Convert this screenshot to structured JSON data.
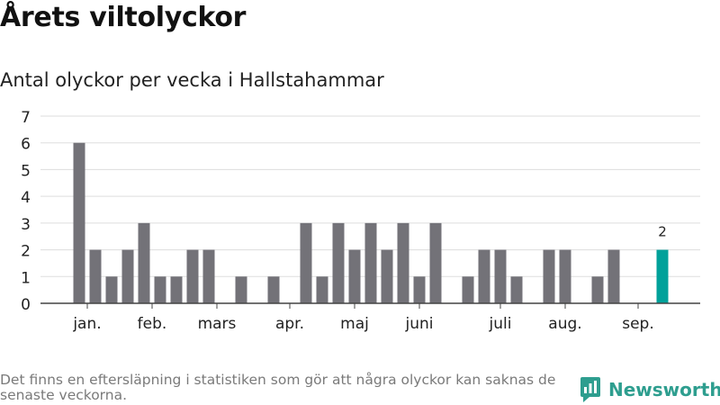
{
  "header": {
    "title": "Årets viltolyckor",
    "subtitle": "Antal olyckor per vecka i Hallstahammar"
  },
  "footnote": "Det finns en eftersläpning i statistiken som gör att några olyckor kan saknas de senaste veckorna.",
  "brand": {
    "name": "Newsworthy",
    "icon": "newsworthy-logo-icon",
    "color": "#2e9e8f"
  },
  "colors": {
    "bar": "#737278",
    "highlight": "#00a19a",
    "grid": "#dddddd",
    "axis": "#444444"
  },
  "chart_data": {
    "type": "bar",
    "title": "Antal olyckor per vecka i Hallstahammar",
    "xlabel": "",
    "ylabel": "",
    "ylim": [
      0,
      7
    ],
    "yticks": [
      0,
      1,
      2,
      3,
      4,
      5,
      6,
      7
    ],
    "x": [
      1,
      2,
      3,
      4,
      5,
      6,
      7,
      8,
      9,
      10,
      11,
      12,
      13,
      14,
      15,
      16,
      17,
      18,
      19,
      20,
      21,
      22,
      23,
      24,
      25,
      26,
      27,
      28,
      29,
      30,
      31,
      32,
      33,
      34,
      35,
      36,
      37,
      38
    ],
    "values": [
      6,
      2,
      1,
      2,
      3,
      1,
      1,
      2,
      2,
      0,
      1,
      0,
      1,
      0,
      3,
      1,
      3,
      2,
      3,
      2,
      3,
      1,
      3,
      0,
      1,
      2,
      2,
      1,
      0,
      2,
      2,
      0,
      1,
      2,
      0,
      0,
      2,
      0
    ],
    "highlight_index": 36,
    "data_labels": [
      {
        "x": 37,
        "value": 2
      }
    ],
    "month_labels": [
      {
        "label": "jan.",
        "x": 1.5
      },
      {
        "label": "feb.",
        "x": 5.5
      },
      {
        "label": "mars",
        "x": 9.5
      },
      {
        "label": "apr.",
        "x": 14
      },
      {
        "label": "maj",
        "x": 18
      },
      {
        "label": "juni",
        "x": 22
      },
      {
        "label": "juli",
        "x": 27
      },
      {
        "label": "aug.",
        "x": 31
      },
      {
        "label": "sep.",
        "x": 35.5
      }
    ],
    "grid": true,
    "legend": "none"
  }
}
